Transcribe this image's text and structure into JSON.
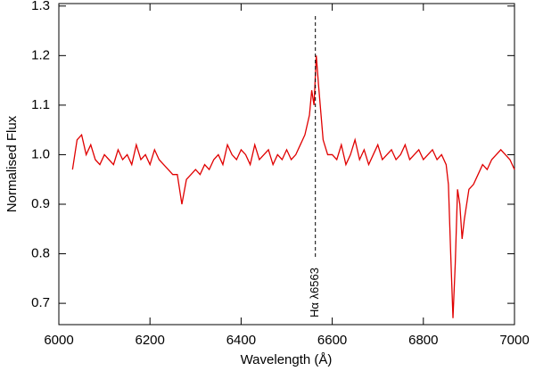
{
  "chart_data": {
    "type": "line",
    "x_label": "Wavelength (Å)",
    "y_label": "Normalised Flux",
    "color": "#e00000",
    "xlim": [
      6000,
      7000
    ],
    "ylim": [
      0.657,
      1.305
    ],
    "xticks": [
      6000,
      6200,
      6400,
      6600,
      6800,
      7000
    ],
    "yticks": [
      0.7,
      0.8,
      0.9,
      {
        "value": 1,
        "label": "1.0"
      },
      1.1,
      1.2,
      1.3
    ],
    "annotation": {
      "text": "Hα λ6563",
      "x": 6563
    },
    "x": [
      6030,
      6040,
      6050,
      6060,
      6070,
      6080,
      6090,
      6100,
      6110,
      6120,
      6130,
      6140,
      6150,
      6160,
      6170,
      6180,
      6190,
      6200,
      6210,
      6220,
      6230,
      6240,
      6250,
      6260,
      6270,
      6280,
      6290,
      6300,
      6310,
      6320,
      6330,
      6340,
      6350,
      6360,
      6370,
      6380,
      6390,
      6400,
      6410,
      6420,
      6430,
      6440,
      6450,
      6460,
      6470,
      6480,
      6490,
      6500,
      6510,
      6520,
      6530,
      6540,
      6550,
      6555,
      6560,
      6565,
      6570,
      6580,
      6590,
      6600,
      6610,
      6620,
      6630,
      6640,
      6650,
      6660,
      6670,
      6680,
      6690,
      6700,
      6710,
      6720,
      6730,
      6740,
      6750,
      6760,
      6770,
      6780,
      6790,
      6800,
      6810,
      6820,
      6830,
      6840,
      6850,
      6855,
      6860,
      6865,
      6870,
      6875,
      6880,
      6885,
      6890,
      6900,
      6910,
      6920,
      6930,
      6940,
      6950,
      6960,
      6970,
      6980,
      6990,
      7000
    ],
    "values": [
      0.97,
      1.03,
      1.04,
      1.0,
      1.02,
      0.99,
      0.98,
      1.0,
      0.99,
      0.98,
      1.01,
      0.99,
      1.0,
      0.98,
      1.02,
      0.99,
      1.0,
      0.98,
      1.01,
      0.99,
      0.98,
      0.97,
      0.96,
      0.96,
      0.9,
      0.95,
      0.96,
      0.97,
      0.96,
      0.98,
      0.97,
      0.99,
      1.0,
      0.98,
      1.02,
      1.0,
      0.99,
      1.01,
      1.0,
      0.98,
      1.02,
      0.99,
      1.0,
      1.01,
      0.98,
      1.0,
      0.99,
      1.01,
      0.99,
      1.0,
      1.02,
      1.04,
      1.08,
      1.13,
      1.1,
      1.2,
      1.14,
      1.03,
      1.0,
      1.0,
      0.99,
      1.02,
      0.98,
      1.0,
      1.03,
      0.99,
      1.01,
      0.98,
      1.0,
      1.02,
      0.99,
      1.0,
      1.01,
      0.99,
      1.0,
      1.02,
      0.99,
      1.0,
      1.01,
      0.99,
      1.0,
      1.01,
      0.99,
      1.0,
      0.98,
      0.94,
      0.8,
      0.67,
      0.78,
      0.93,
      0.9,
      0.83,
      0.87,
      0.93,
      0.94,
      0.96,
      0.98,
      0.97,
      0.99,
      1.0,
      1.01,
      1.0,
      0.99,
      0.97
    ]
  }
}
